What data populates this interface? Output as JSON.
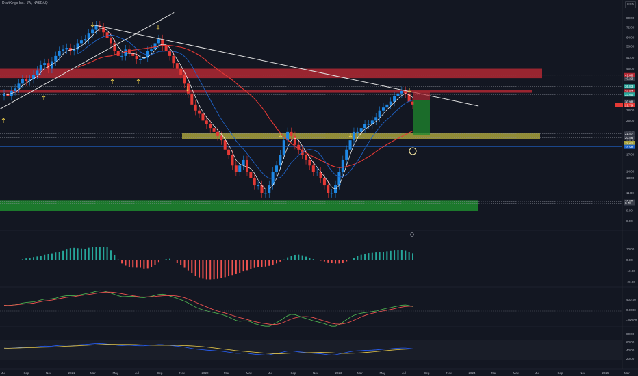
{
  "symbol": {
    "title": "DraftKings Inc., 1W, NASDAQ",
    "currency": "USD"
  },
  "colors": {
    "bg": "#131722",
    "grid": "#1e222d",
    "up": "#26a69a",
    "down": "#ef5350",
    "candle_up": "#1e88e5",
    "candle_down": "#e53935",
    "resistance": "#b22833",
    "support": "#a8a13a",
    "floor": "#1f8a2e",
    "trend": "#e0e0e0",
    "ma_fast": "#ffffff",
    "ma_slow": "#e53935",
    "ma_long": "#1e63c8",
    "rsi": "#2962ff",
    "rsi_ma": "#e6c84a",
    "macd": "#4caf50",
    "signal": "#ef5350"
  },
  "price_axis": {
    "scale": "log",
    "labels": [
      "80.00",
      "72.00",
      "64.00",
      "58.00",
      "51.00",
      "45.00",
      "40.00",
      "35.00",
      "31.00",
      "28.00",
      "25.00",
      "22.00",
      "20.00",
      "17.00",
      "14.00",
      "13.00",
      "11.00",
      "10.00",
      "9.00",
      "8.00"
    ],
    "tags": [
      {
        "text": "41.88",
        "color": "#b22833",
        "price": 41.88
      },
      {
        "text": "40.22",
        "color": "#3a3e4a",
        "price": 40.22
      },
      {
        "text": "36.83",
        "color": "#26a69a",
        "price": 36.83
      },
      {
        "text": "34.87",
        "color": "#b22833",
        "price": 34.87
      },
      {
        "text": "33.60",
        "color": "#26a69a",
        "price": 33.6
      },
      {
        "text": "30.98",
        "color": "#3a3e4a",
        "price": 30.98
      },
      {
        "text": "29.79",
        "color": "#e53935",
        "price": 29.79
      },
      {
        "text": "21.57",
        "color": "#3a3e4a",
        "price": 21.57
      },
      {
        "text": "20.56",
        "color": "#3a3e4a",
        "price": 20.56
      },
      {
        "text": "19.41",
        "color": "#a8a13a",
        "price": 19.41
      },
      {
        "text": "18.58",
        "color": "#1e63c8",
        "price": 18.58
      },
      {
        "text": "10.00",
        "color": "#3a3e4a",
        "price": 10.0
      },
      {
        "text": "9.78",
        "color": "#3a3e4a",
        "price": 9.78
      }
    ]
  },
  "time_axis": {
    "labels": [
      "Jul",
      "Sep",
      "Nov",
      "2021",
      "Mar",
      "May",
      "Jul",
      "Sep",
      "Nov",
      "2022",
      "Mar",
      "May",
      "Jul",
      "Sep",
      "Nov",
      "2023",
      "Mar",
      "May",
      "Jul",
      "Sep",
      "Nov",
      "2024",
      "Mar",
      "May",
      "Jul",
      "Sep",
      "Nov",
      "2025",
      "Mar"
    ]
  },
  "osc1_axis": {
    "labels": [
      "10.00",
      "0.00",
      "-10.00",
      "-20.00"
    ]
  },
  "osc2_axis": {
    "labels": [
      "400.00",
      "0.0000",
      "-400.00"
    ]
  },
  "rsi_axis": {
    "labels": [
      "80.00",
      "60.00",
      "40.00",
      "20.00"
    ]
  },
  "chart_data": {
    "type": "candlestick",
    "title": "DraftKings Inc., 1W, NASDAQ",
    "scale": "log",
    "ylim": [
      7.6,
      88
    ],
    "zones": [
      {
        "name": "resistance-upper",
        "low": 40.5,
        "high": 45.0,
        "color": "#b22833"
      },
      {
        "name": "resistance-lower",
        "low": 34.3,
        "high": 35.4,
        "color": "#b22833"
      },
      {
        "name": "support",
        "low": 20.2,
        "high": 21.7,
        "color": "#a8a13a"
      },
      {
        "name": "floor",
        "low": 9.0,
        "high": 10.1,
        "color": "#1f8a2e"
      }
    ],
    "trendlines": [
      {
        "name": "long-downtrend",
        "from": [
          0.15,
          74.0
        ],
        "to": [
          0.77,
          29.5
        ]
      },
      {
        "name": "2020-uptrend",
        "from": [
          0.0,
          28.5
        ],
        "to": [
          0.28,
          85.0
        ]
      }
    ],
    "weekly_closes": [
      34,
      33,
      35,
      36,
      38,
      40,
      39,
      40,
      42,
      44,
      47,
      48,
      45,
      49,
      52,
      55,
      56,
      57,
      55,
      56,
      60,
      62,
      63,
      67,
      70,
      74,
      72,
      68,
      64,
      60,
      55,
      52,
      52,
      56,
      54,
      52,
      50,
      50,
      51,
      55,
      56,
      60,
      63,
      58,
      55,
      52,
      48,
      45,
      42,
      38,
      34,
      30,
      28,
      27,
      25,
      24,
      23,
      22,
      21,
      20,
      18,
      17,
      15,
      14,
      15,
      16,
      14,
      13,
      12,
      12,
      11,
      11,
      12,
      14,
      15,
      17,
      20,
      22,
      21,
      19,
      18,
      17,
      16,
      15,
      14,
      14,
      13,
      12,
      11,
      11,
      12,
      14,
      16,
      18,
      20,
      22,
      22,
      23,
      24,
      24,
      25,
      26,
      28,
      29,
      30,
      31,
      33,
      34,
      35,
      34,
      31,
      30
    ]
  }
}
